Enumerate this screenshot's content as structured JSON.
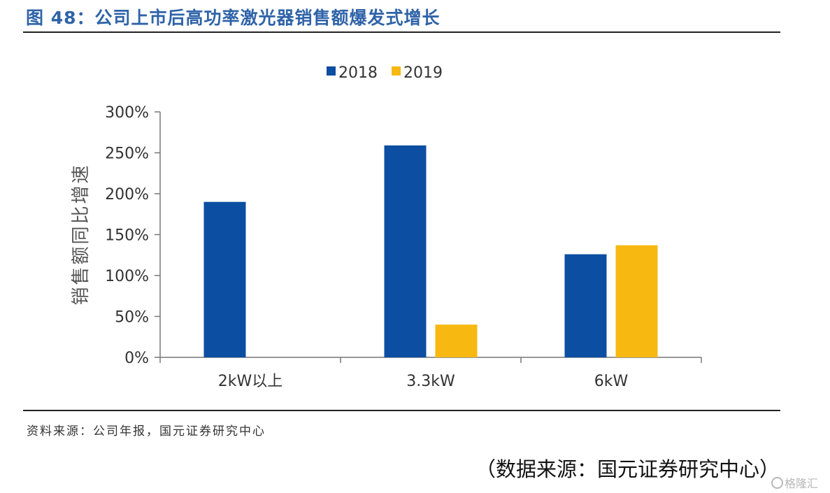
{
  "figure": {
    "title": "图 48：公司上市后高功率激光器销售额爆发式增长",
    "source_note": "资料来源：公司年报，国元证券研究中心",
    "source_caption": "（数据来源：国元证券研究中心）",
    "watermark": "格隆汇"
  },
  "chart_data": {
    "type": "bar",
    "title": "",
    "xlabel": "",
    "ylabel": "销售额同比增速",
    "categories": [
      "2kW以上",
      "3.3kW",
      "6kW"
    ],
    "series": [
      {
        "name": "2018",
        "values": [
          1.9,
          2.59,
          1.26
        ],
        "color": "#0c4ea2"
      },
      {
        "name": "2019",
        "values": [
          null,
          0.4,
          1.37
        ],
        "color": "#f7b811"
      }
    ],
    "ylim": [
      0,
      3
    ],
    "yticks": [
      0,
      0.5,
      1,
      1.5,
      2,
      2.5,
      3
    ],
    "ytick_labels": [
      "0%",
      "50%",
      "100%",
      "150%",
      "200%",
      "250%",
      "300%"
    ],
    "legend": "top-center",
    "grid": false
  }
}
